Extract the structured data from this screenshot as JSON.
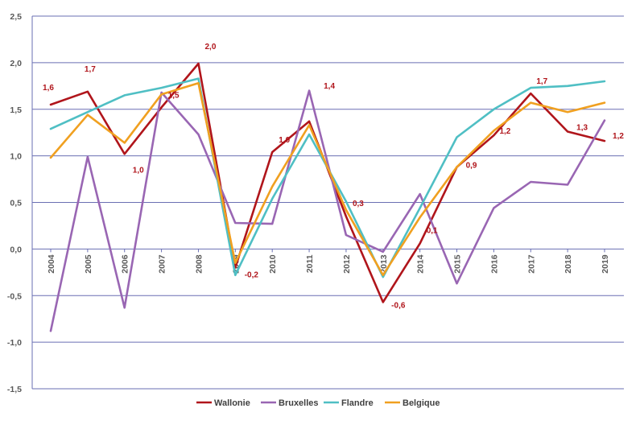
{
  "chart_data": {
    "type": "line",
    "title": "",
    "xlabel": "",
    "ylabel": "",
    "categories": [
      "2004",
      "2005",
      "2006",
      "2007",
      "2008",
      "2009",
      "2010",
      "2011",
      "2012",
      "2013",
      "2014",
      "2015",
      "2016",
      "2017",
      "2018",
      "2019"
    ],
    "ylim": [
      -1.5,
      2.5
    ],
    "yticks": [
      "-1,5",
      "-1,0",
      "-0,5",
      "0,0",
      "0,5",
      "1,0",
      "1,5",
      "2,0",
      "2,5"
    ],
    "ytick_values": [
      -1.5,
      -1.0,
      -0.5,
      0.0,
      0.5,
      1.0,
      1.5,
      2.0,
      2.5
    ],
    "grid": true,
    "legend_position": "bottom",
    "series": [
      {
        "name": "Wallonie",
        "color": "#b0151b",
        "values": [
          1.55,
          1.69,
          1.02,
          1.52,
          1.99,
          -0.2,
          1.04,
          1.37,
          0.35,
          -0.57,
          0.06,
          0.88,
          1.22,
          1.67,
          1.26,
          1.16
        ]
      },
      {
        "name": "Bruxelles",
        "color": "#9966b3",
        "values": [
          -0.88,
          0.99,
          -0.63,
          1.68,
          1.23,
          0.28,
          0.27,
          1.7,
          0.15,
          -0.03,
          0.59,
          -0.37,
          0.44,
          0.72,
          0.69,
          1.38
        ]
      },
      {
        "name": "Flandre",
        "color": "#4fbfc4",
        "values": [
          1.29,
          1.47,
          1.65,
          1.73,
          1.83,
          -0.28,
          0.54,
          1.23,
          0.51,
          -0.3,
          0.44,
          1.2,
          1.5,
          1.73,
          1.75,
          1.8
        ]
      },
      {
        "name": "Belgique",
        "color": "#f0a020",
        "values": [
          0.98,
          1.44,
          1.14,
          1.66,
          1.78,
          -0.15,
          0.67,
          1.33,
          0.42,
          -0.28,
          0.34,
          0.88,
          1.27,
          1.57,
          1.47,
          1.57
        ]
      }
    ],
    "data_labels": [
      "1,6",
      "1,7",
      "1,0",
      "1,5",
      "2,0",
      "-0,2",
      "1,0",
      "1,4",
      "0,3",
      "-0,6",
      "0,1",
      "0,9",
      "1,2",
      "1,7",
      "1,3",
      "1,2"
    ]
  }
}
